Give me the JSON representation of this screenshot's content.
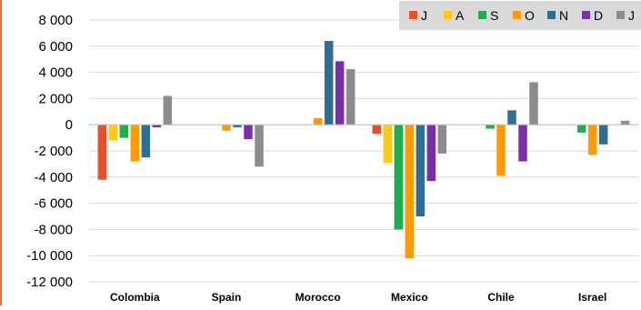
{
  "chart_data": {
    "type": "bar",
    "title": "",
    "xlabel": "",
    "ylabel": "",
    "ylim": [
      -12000,
      8000
    ],
    "yticks": [
      8000,
      6000,
      4000,
      2000,
      0,
      -2000,
      -4000,
      -6000,
      -8000,
      -10000,
      -12000
    ],
    "ytick_labels": [
      "8 000",
      "6 000",
      "4 000",
      "2 000",
      "0",
      "-2 000",
      "-4 000",
      "-6 000",
      "-8 000",
      "-10 000",
      "-12 000"
    ],
    "grid": true,
    "legend_position": "top-right",
    "categories": [
      "Colombia",
      "Spain",
      "Morocco",
      "Mexico",
      "Chile",
      "Israel"
    ],
    "series": [
      {
        "name": "J",
        "color": "#e8502a",
        "values": [
          -4200,
          0,
          0,
          -700,
          0,
          0
        ]
      },
      {
        "name": "A",
        "color": "#ffc91a",
        "values": [
          -1200,
          0,
          0,
          -2900,
          0,
          0
        ]
      },
      {
        "name": "S",
        "color": "#1fad4d",
        "values": [
          -1000,
          0,
          0,
          -8000,
          -300,
          -600
        ]
      },
      {
        "name": "O",
        "color": "#ff9a00",
        "values": [
          -2800,
          -450,
          500,
          -10200,
          -3900,
          -2300
        ]
      },
      {
        "name": "N",
        "color": "#2e6e94",
        "values": [
          -2500,
          -200,
          6400,
          -7000,
          1100,
          -1500
        ]
      },
      {
        "name": "D",
        "color": "#7a2fa8",
        "values": [
          -200,
          -1100,
          4850,
          -4300,
          -2800,
          0
        ]
      },
      {
        "name": "J",
        "color": "#8c8c8c",
        "values": [
          2200,
          -3200,
          4250,
          -2200,
          3250,
          300
        ]
      }
    ]
  }
}
